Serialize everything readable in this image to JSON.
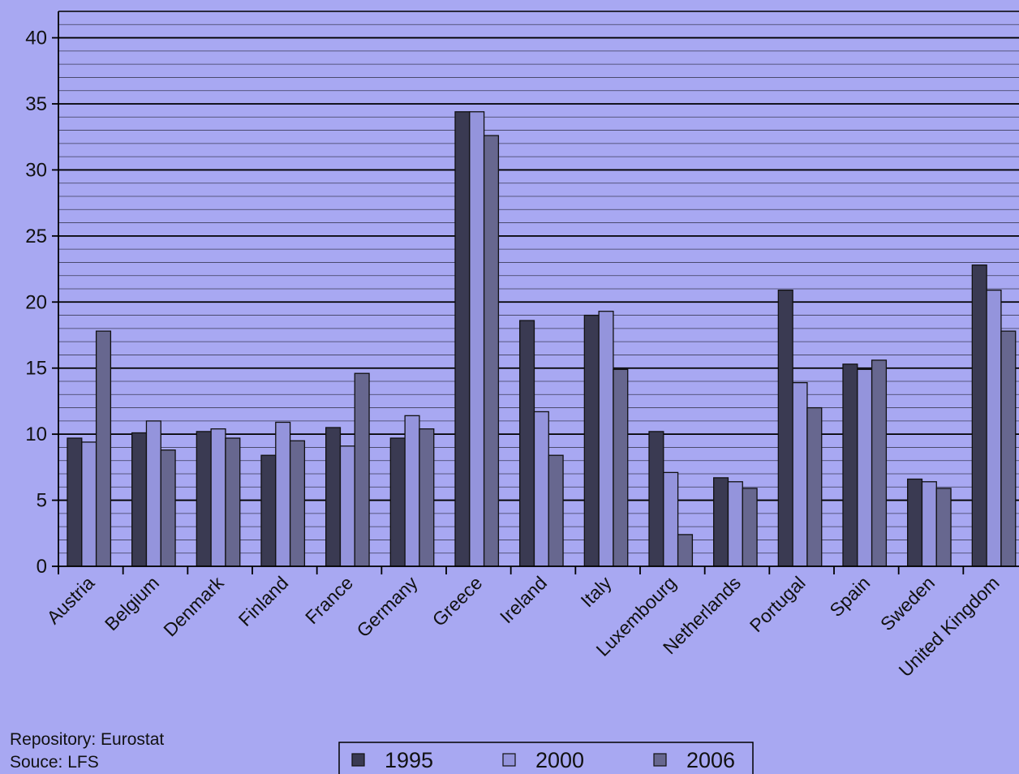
{
  "chart_data": {
    "type": "bar",
    "categories": [
      "Austria",
      "Belgium",
      "Denmark",
      "Finland",
      "France",
      "Germany",
      "Greece",
      "Ireland",
      "Italy",
      "Luxembourg",
      "Netherlands",
      "Portugal",
      "Spain",
      "Sweden",
      "United Kingdom"
    ],
    "series": [
      {
        "name": "1995",
        "color": "#3a3a52",
        "values": [
          9.7,
          10.1,
          10.2,
          8.4,
          10.5,
          9.7,
          34.4,
          18.6,
          19.0,
          10.2,
          6.7,
          20.9,
          15.3,
          6.6,
          22.8
        ]
      },
      {
        "name": "2000",
        "color": "#9494dc",
        "values": [
          9.4,
          11.0,
          10.4,
          10.9,
          9.1,
          11.4,
          34.4,
          11.7,
          19.3,
          7.1,
          6.4,
          13.9,
          14.9,
          6.4,
          20.9
        ]
      },
      {
        "name": "2006",
        "color": "#67678f",
        "values": [
          17.8,
          8.8,
          9.7,
          9.5,
          14.6,
          10.4,
          32.6,
          8.4,
          14.9,
          2.4,
          5.9,
          12.0,
          15.6,
          5.9,
          17.8
        ]
      }
    ],
    "yticks": [
      "0",
      "5",
      "10",
      "15",
      "20",
      "25",
      "30",
      "35",
      "40"
    ],
    "ylim": [
      0,
      42
    ],
    "grid": true,
    "legend_position": "bottom-center"
  },
  "notes": {
    "repository": "Repository: Eurostat",
    "source": "Souce: LFS"
  }
}
